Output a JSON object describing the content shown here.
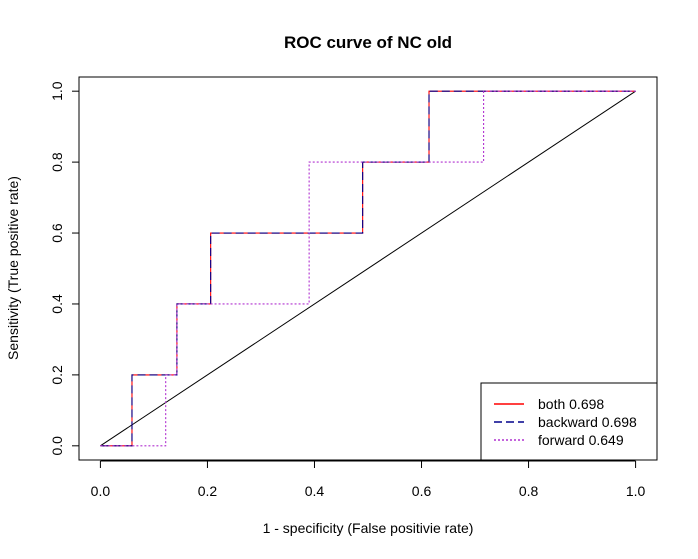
{
  "chart_data": {
    "type": "line",
    "title": "ROC curve of NC old",
    "xlabel": "1 - specificity (False positivie rate)",
    "ylabel": "Sensitivity (True positive rate)",
    "xlim": [
      -0.04,
      1.04
    ],
    "ylim": [
      -0.04,
      1.04
    ],
    "xticks": [
      0.0,
      0.2,
      0.4,
      0.6,
      0.8,
      1.0
    ],
    "yticks": [
      0.0,
      0.2,
      0.4,
      0.6,
      0.8,
      1.0
    ],
    "xtick_labels": [
      "0.0",
      "0.2",
      "0.4",
      "0.6",
      "0.8",
      "1.0"
    ],
    "ytick_labels": [
      "0.0",
      "0.2",
      "0.4",
      "0.6",
      "0.8",
      "1.0"
    ],
    "grid": false,
    "legend_position": "bottom-right",
    "reference_line": {
      "x": [
        0,
        1
      ],
      "y": [
        0,
        1
      ],
      "color": "#000000"
    },
    "series": [
      {
        "name": "both 0.698",
        "color": "#ff0000",
        "dash": "solid",
        "x": [
          0,
          0.059,
          0.059,
          0.143,
          0.143,
          0.206,
          0.206,
          0.49,
          0.49,
          0.614,
          0.614,
          1.0
        ],
        "y": [
          0,
          0,
          0.2,
          0.2,
          0.4,
          0.4,
          0.6,
          0.6,
          0.8,
          0.8,
          1.0,
          1.0
        ]
      },
      {
        "name": "backward 0.698",
        "color": "#00008b",
        "dash": "dashed",
        "x": [
          0,
          0.059,
          0.059,
          0.143,
          0.143,
          0.206,
          0.206,
          0.49,
          0.49,
          0.614,
          0.614,
          1.0
        ],
        "y": [
          0,
          0,
          0.2,
          0.2,
          0.4,
          0.4,
          0.6,
          0.6,
          0.8,
          0.8,
          1.0,
          1.0
        ]
      },
      {
        "name": "forward 0.649",
        "color": "#b030d0",
        "dash": "dotted",
        "x": [
          0,
          0.122,
          0.122,
          0.143,
          0.143,
          0.39,
          0.39,
          0.716,
          0.716,
          1.0
        ],
        "y": [
          0,
          0,
          0.2,
          0.2,
          0.4,
          0.4,
          0.8,
          0.8,
          1.0,
          1.0
        ]
      }
    ]
  }
}
